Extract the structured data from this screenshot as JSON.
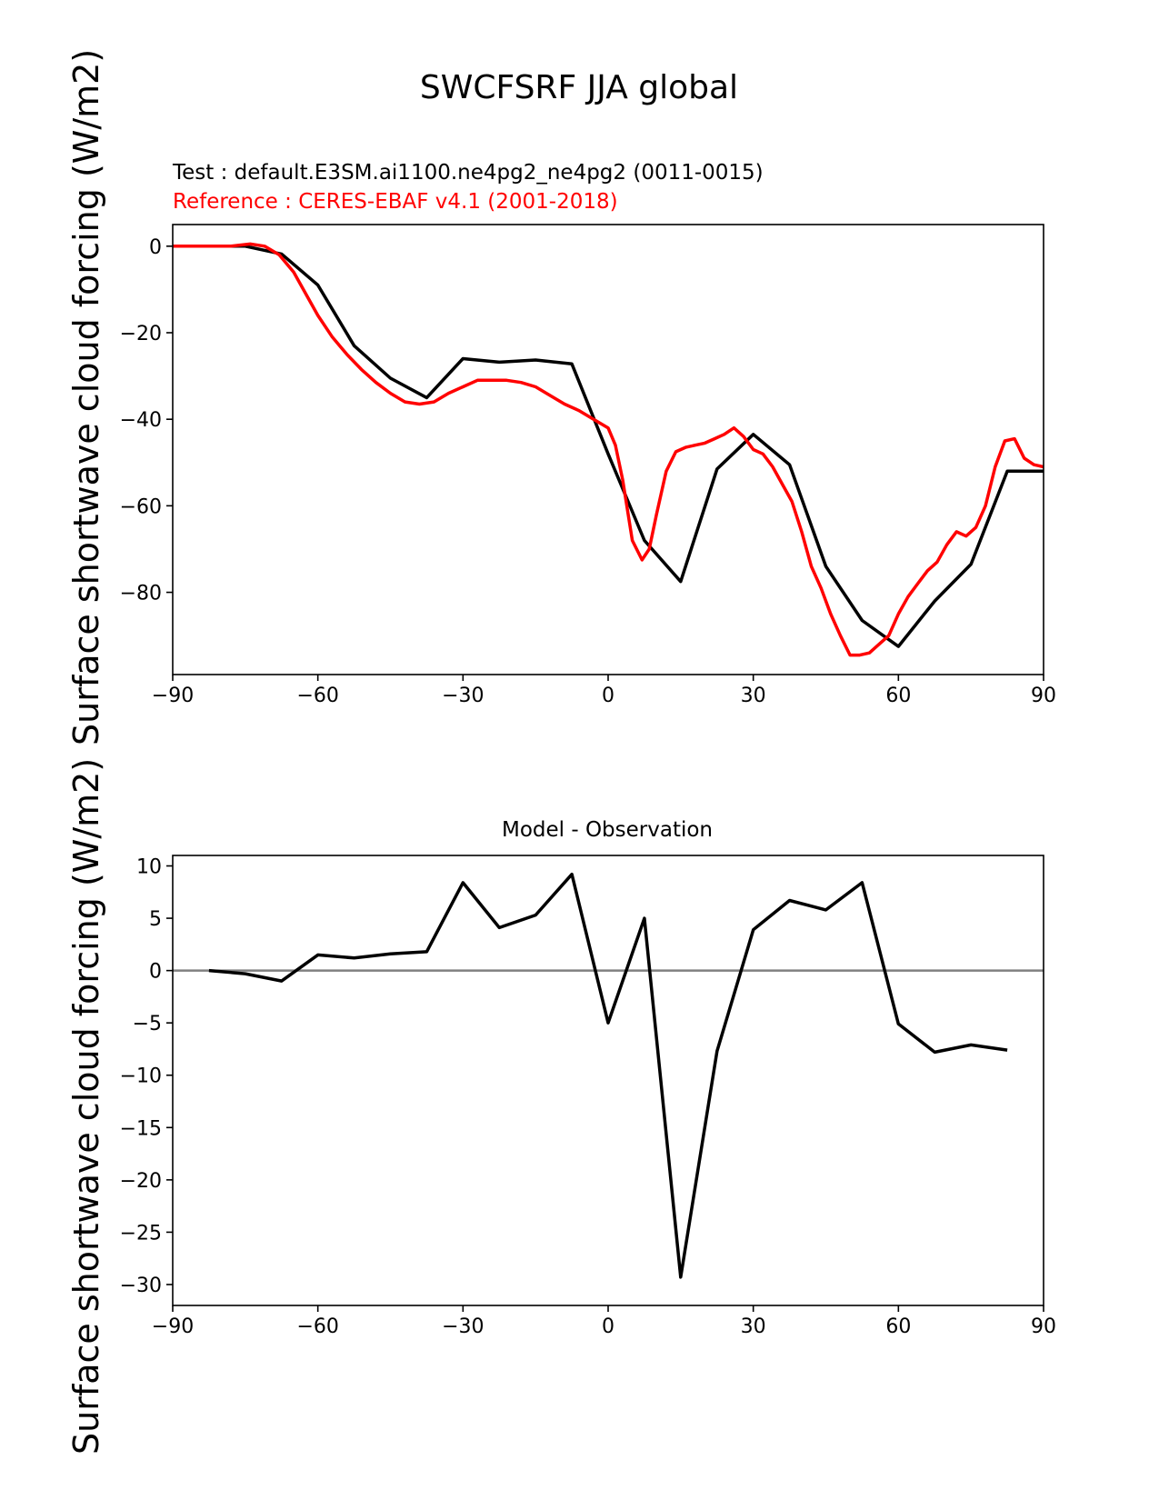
{
  "figure": {
    "suptitle": "SWCFSRF JJA global"
  },
  "chart_data": [
    {
      "type": "line",
      "subtitle_test": "Test : default.E3SM.ai1100.ne4pg2_ne4pg2 (0011-0015)",
      "subtitle_ref": "Reference : CERES-EBAF v4.1 (2001-2018)",
      "ylabel": "Surface shortwave cloud forcing (W/m2)",
      "xlabel": "",
      "xlim": [
        -90,
        90
      ],
      "ylim": [
        -99,
        5
      ],
      "xticks": [
        -90,
        -60,
        -30,
        0,
        30,
        60,
        90
      ],
      "yticks": [
        0,
        -20,
        -40,
        -60,
        -80
      ],
      "grid": false,
      "series": [
        {
          "role": "test",
          "color": "#000000",
          "x": [
            -90,
            -82.5,
            -75,
            -67.5,
            -60,
            -52.5,
            -45,
            -37.5,
            -30,
            -22.5,
            -15,
            -7.5,
            0,
            7.5,
            15,
            22.5,
            30,
            37.5,
            45,
            52.5,
            60,
            67.5,
            75,
            82.5,
            90
          ],
          "y": [
            0,
            0,
            0,
            -1.8,
            -9,
            -23,
            -30.5,
            -35,
            -26,
            -26.8,
            -26.3,
            -27.2,
            -48,
            -68,
            -77.5,
            -51.5,
            -43.5,
            -50.5,
            -74,
            -86.5,
            -92.5,
            -82,
            -73.5,
            -52,
            -52
          ]
        },
        {
          "role": "reference",
          "color": "#ff0000",
          "x": [
            -90,
            -84,
            -78,
            -74,
            -71,
            -68,
            -65,
            -62,
            -60,
            -57,
            -54,
            -51,
            -48,
            -45,
            -42,
            -39,
            -36,
            -33,
            -30,
            -27,
            -24,
            -21,
            -18,
            -15,
            -12,
            -9,
            -6,
            -3,
            0,
            1.5,
            3,
            5,
            7,
            8.5,
            10,
            12,
            14,
            16,
            18,
            20,
            22,
            24,
            26,
            28,
            30,
            32,
            34,
            36,
            38,
            40,
            42,
            44,
            46,
            48,
            50,
            52,
            54,
            56,
            58,
            60,
            62,
            64,
            66,
            68,
            70,
            72,
            74,
            76,
            78,
            80,
            82,
            84,
            86,
            88,
            90
          ],
          "y": [
            0,
            0,
            0,
            0.5,
            0,
            -2,
            -6,
            -12,
            -16,
            -21,
            -25,
            -28.5,
            -31.5,
            -34,
            -36,
            -36.5,
            -36,
            -34,
            -32.5,
            -31,
            -31,
            -31,
            -31.5,
            -32.5,
            -34.5,
            -36.5,
            -38,
            -40,
            -42,
            -46,
            -54,
            -68,
            -72.5,
            -70,
            -62,
            -52,
            -47.5,
            -46.5,
            -46,
            -45.5,
            -44.5,
            -43.5,
            -42,
            -44,
            -47,
            -48,
            -51,
            -55,
            -59,
            -66,
            -74,
            -79,
            -85,
            -90,
            -94.5,
            -94.5,
            -94,
            -92,
            -90,
            -85,
            -81,
            -78,
            -75,
            -73,
            -69,
            -66,
            -67,
            -65,
            -60,
            -51,
            -45,
            -44.5,
            -49,
            -50.5,
            -51
          ]
        }
      ]
    },
    {
      "type": "line",
      "title": "Model - Observation",
      "ylabel": "Surface shortwave cloud forcing (W/m2)",
      "xlabel": "",
      "xlim": [
        -90,
        90
      ],
      "ylim": [
        -32,
        11
      ],
      "xticks": [
        -90,
        -60,
        -30,
        0,
        30,
        60,
        90
      ],
      "yticks": [
        10,
        5,
        0,
        -5,
        -10,
        -15,
        -20,
        -25,
        -30
      ],
      "grid": false,
      "zero_line_color": "#808080",
      "series": [
        {
          "role": "difference",
          "color": "#000000",
          "x": [
            -82.5,
            -75,
            -67.5,
            -60,
            -52.5,
            -45,
            -37.5,
            -30,
            -22.5,
            -15,
            -7.5,
            0,
            7.5,
            15,
            22.5,
            30,
            37.5,
            45,
            52.5,
            60,
            67.5,
            75,
            82.5
          ],
          "y": [
            0,
            -0.3,
            -1,
            1.5,
            1.2,
            1.6,
            1.8,
            8.4,
            4.1,
            5.3,
            9.2,
            -5,
            5,
            -29.3,
            -7.7,
            3.9,
            6.7,
            5.8,
            8.4,
            -5.1,
            -7.8,
            -7.1,
            -7.6
          ]
        }
      ]
    }
  ]
}
